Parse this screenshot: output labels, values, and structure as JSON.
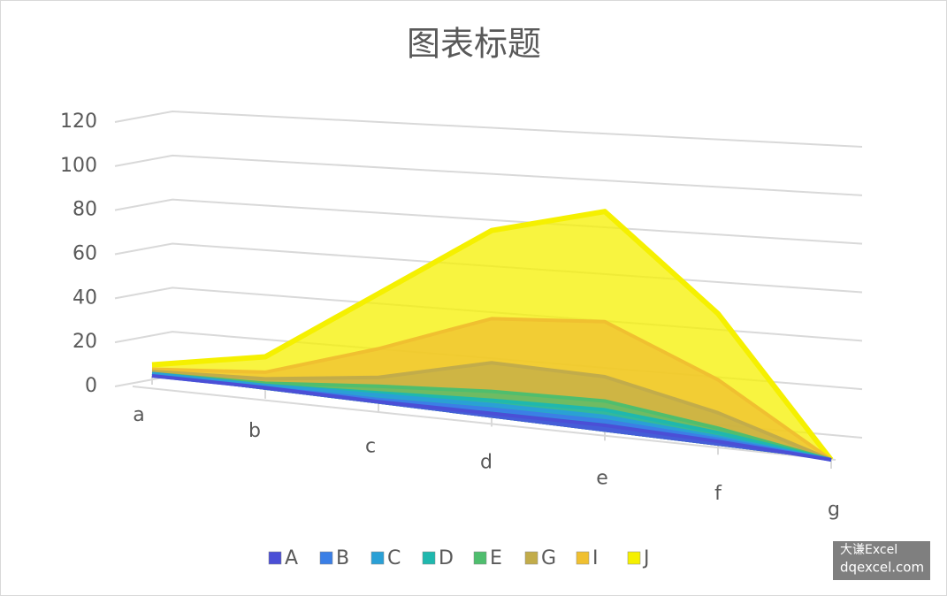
{
  "chart_data": {
    "type": "area3d",
    "title": "图表标题",
    "categories": [
      "a",
      "b",
      "c",
      "d",
      "e",
      "f",
      "g"
    ],
    "series": [
      {
        "name": "A",
        "color": "#4b4fd6",
        "values": [
          0,
          1,
          1,
          2,
          3,
          2,
          0
        ]
      },
      {
        "name": "B",
        "color": "#3b7fe6",
        "values": [
          0,
          1,
          2,
          4,
          5,
          3,
          0
        ]
      },
      {
        "name": "C",
        "color": "#2aa0d6",
        "values": [
          1,
          2,
          4,
          6,
          7,
          4,
          0
        ]
      },
      {
        "name": "D",
        "color": "#1fb8ae",
        "values": [
          1,
          2,
          5,
          8,
          10,
          6,
          0
        ]
      },
      {
        "name": "E",
        "color": "#4fbe6e",
        "values": [
          1,
          3,
          8,
          12,
          14,
          8,
          0
        ]
      },
      {
        "name": "G",
        "color": "#c2ac4a",
        "values": [
          2,
          5,
          12,
          25,
          25,
          15,
          0
        ]
      },
      {
        "name": "I",
        "color": "#f0c030",
        "values": [
          3,
          8,
          25,
          45,
          50,
          30,
          0
        ]
      },
      {
        "name": "J",
        "color": "#f5f000",
        "values": [
          5,
          15,
          50,
          85,
          100,
          60,
          0
        ]
      }
    ],
    "ylim": [
      0,
      120
    ],
    "yticks": [
      0,
      20,
      40,
      60,
      80,
      100,
      120
    ],
    "grid": true,
    "legend": "bottom"
  },
  "watermark": [
    "大谦Excel",
    "dqexcel.com"
  ]
}
